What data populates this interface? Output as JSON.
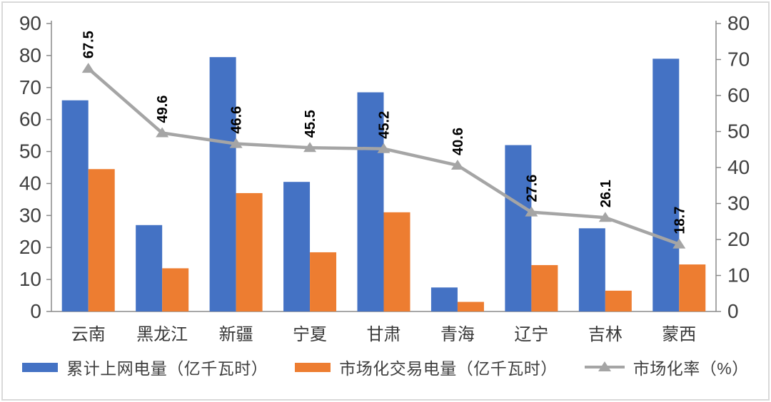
{
  "chart_data": {
    "type": "combo-bar-line",
    "title": "",
    "categories": [
      "云南",
      "黑龙江",
      "新疆",
      "宁夏",
      "甘肃",
      "青海",
      "辽宁",
      "吉林",
      "蒙西"
    ],
    "series": [
      {
        "name": "累计上网电量（亿千瓦时）",
        "type": "bar",
        "axis": "left",
        "color": "#4472C4",
        "values": [
          66,
          27,
          79.5,
          40.5,
          68.5,
          7.5,
          52,
          26,
          79
        ]
      },
      {
        "name": "市场化交易电量（亿千瓦时）",
        "type": "bar",
        "axis": "left",
        "color": "#ED7D31",
        "values": [
          44.5,
          13.5,
          37,
          18.5,
          31,
          3,
          14.5,
          6.5,
          14.7
        ]
      },
      {
        "name": "市场化率（%）",
        "type": "line",
        "axis": "right",
        "color": "#A5A5A5",
        "marker": "triangle-up",
        "values": [
          67.5,
          49.6,
          46.6,
          45.5,
          45.2,
          40.6,
          27.6,
          26.1,
          18.7
        ],
        "data_labels": [
          "67.5",
          "49.6",
          "46.6",
          "45.5",
          "45.2",
          "40.6",
          "27.6",
          "26.1",
          "18.7"
        ]
      }
    ],
    "left_axis": {
      "min": 0,
      "max": 90,
      "step": 10,
      "ticks": [
        "0",
        "10",
        "20",
        "30",
        "40",
        "50",
        "60",
        "70",
        "80",
        "90"
      ]
    },
    "right_axis": {
      "min": 0,
      "max": 80,
      "step": 10,
      "ticks": [
        "0",
        "10",
        "20",
        "30",
        "40",
        "50",
        "60",
        "70",
        "80"
      ]
    },
    "grid": false,
    "legend_position": "bottom",
    "data_label_rotation": -90
  },
  "legend": {
    "items": [
      {
        "label": "累计上网电量（亿千瓦时）",
        "marker": "bar",
        "color": "#4472C4"
      },
      {
        "label": "市场化交易电量（亿千瓦时）",
        "marker": "bar",
        "color": "#ED7D31"
      },
      {
        "label": "市场化率（%）",
        "marker": "line-triangle",
        "color": "#A5A5A5"
      }
    ]
  },
  "colors": {
    "bar_blue": "#4472C4",
    "bar_orange": "#ED7D31",
    "line_gray": "#A5A5A5",
    "axis_text": "#404040",
    "category_text": "#383838",
    "data_label_text": "#000000",
    "axis_line": "#8a8a8a",
    "background": "#ffffff",
    "frame_border": "#d9d9d9"
  }
}
